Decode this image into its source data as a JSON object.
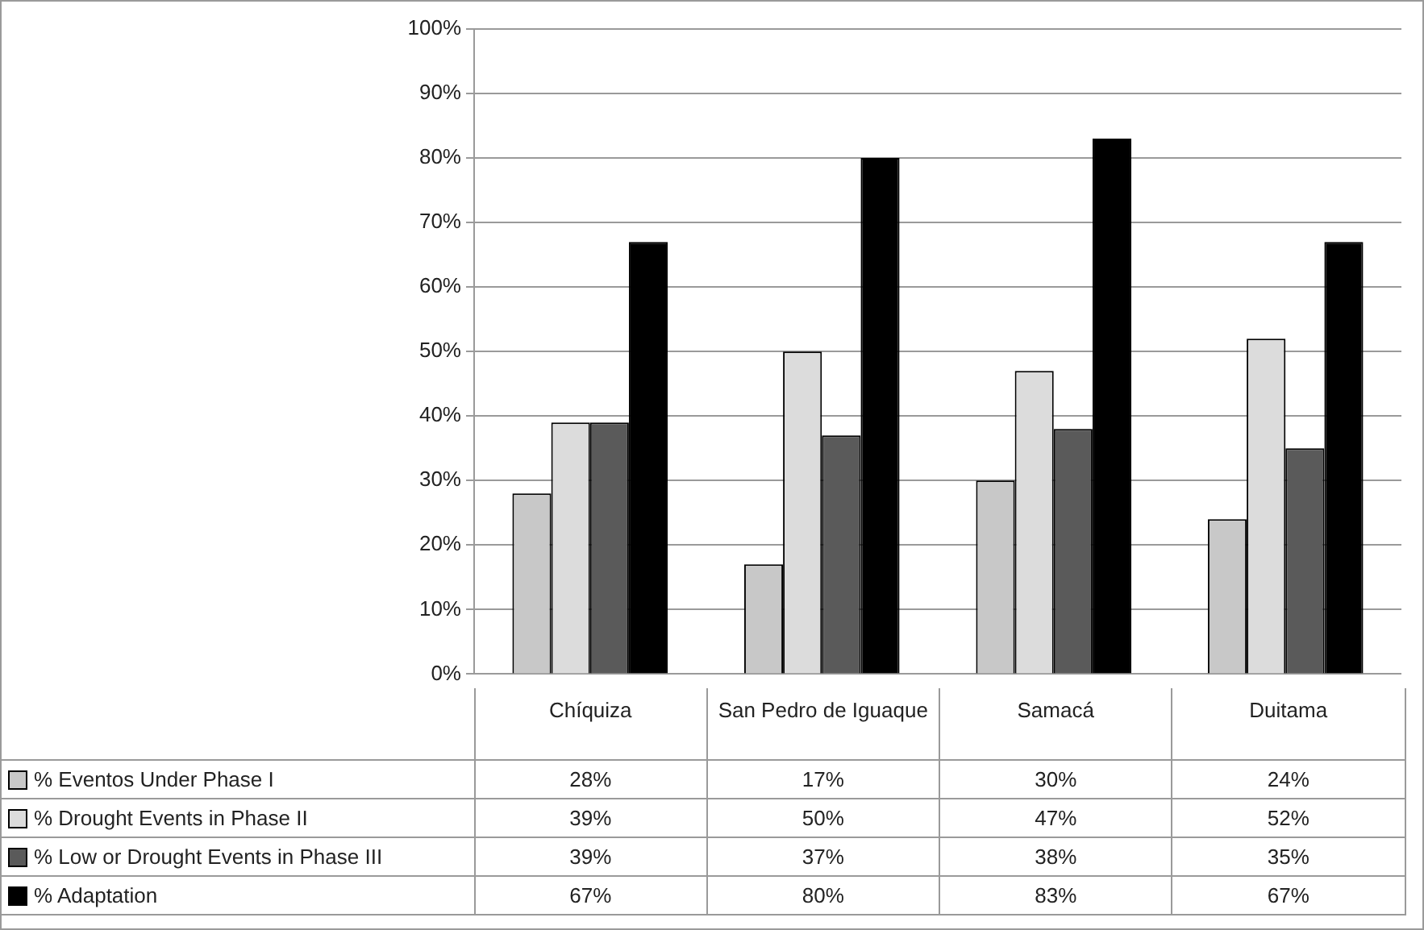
{
  "chart_data": {
    "type": "bar",
    "categories": [
      "Chíquiza",
      "San Pedro de Iguaque",
      "Samacá",
      "Duitama"
    ],
    "series": [
      {
        "name": "% Eventos Under Phase I",
        "color": "#c8c8c8",
        "values": [
          28,
          17,
          30,
          24
        ],
        "value_labels": [
          "28%",
          "17%",
          "30%",
          "24%"
        ]
      },
      {
        "name": "% Drought Events in Phase II",
        "color": "#dcdcdc",
        "values": [
          39,
          50,
          47,
          52
        ],
        "value_labels": [
          "39%",
          "50%",
          "47%",
          "52%"
        ]
      },
      {
        "name": "% Low or Drought Events in Phase III",
        "color": "#5a5a5a",
        "values": [
          39,
          37,
          38,
          35
        ],
        "value_labels": [
          "39%",
          "37%",
          "38%",
          "35%"
        ]
      },
      {
        "name": "% Adaptation",
        "color": "#000000",
        "values": [
          67,
          80,
          83,
          67
        ],
        "value_labels": [
          "67%",
          "80%",
          "83%",
          "67%"
        ]
      }
    ],
    "ylim": [
      0,
      100
    ],
    "yticks": [
      {
        "value": 0,
        "label": "0%"
      },
      {
        "value": 10,
        "label": "10%"
      },
      {
        "value": 20,
        "label": "20%"
      },
      {
        "value": 30,
        "label": "30%"
      },
      {
        "value": 40,
        "label": "40%"
      },
      {
        "value": 50,
        "label": "50%"
      },
      {
        "value": 60,
        "label": "60%"
      },
      {
        "value": 70,
        "label": "70%"
      },
      {
        "value": 80,
        "label": "80%"
      },
      {
        "value": 90,
        "label": "90%"
      },
      {
        "value": 100,
        "label": "100%"
      }
    ],
    "grid": "y",
    "legend": "bottom left"
  }
}
